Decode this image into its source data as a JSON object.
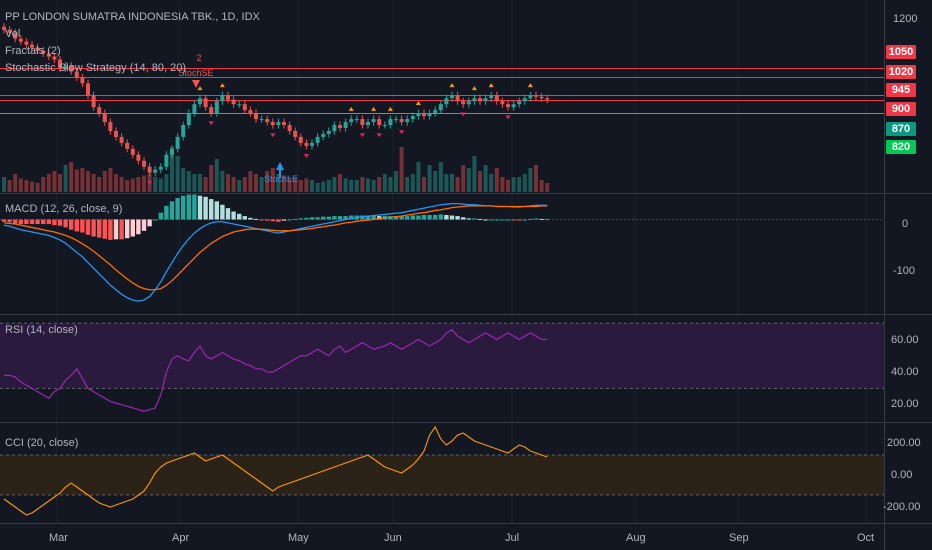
{
  "colors": {
    "background": "#131722",
    "grid": "#1e222d",
    "separator": "#363a45",
    "up": "#26a69a",
    "down": "#ef5350",
    "red_line": "#f23645",
    "green_line": "#4caf50",
    "macd": "#2196f3",
    "signal": "#ff6d00",
    "rsi": "#9c27b0",
    "rsi_band": "#2a1a3e",
    "cci": "#ff9800",
    "cci_band": "#2b2218",
    "tag_green": "#089981",
    "tag_bright_green": "#00c853",
    "tag_red": "#f23645"
  },
  "main_legend": {
    "title": "PP LONDON SUMATRA INDONESIA TBK., 1D, IDX",
    "vol": "Vol",
    "fractals": "Fractals (2)",
    "stochastic": "Stochastic Slow Strategy (14, 80, 20)"
  },
  "macd_legend": "MACD (12, 26, close, 9)",
  "rsi_legend": "RSI (14, close)",
  "cci_legend": "CCI (20, close)",
  "price_axis": {
    "ticks": [
      "1200"
    ],
    "tags": [
      {
        "label": "1050",
        "value": 1050,
        "color": "#f23645"
      },
      {
        "label": "1020",
        "value": 1020,
        "color": "#f23645"
      },
      {
        "label": "945",
        "value": 945,
        "color": "#f23645"
      },
      {
        "label": "900",
        "value": 900,
        "color": "#f23645"
      },
      {
        "label": "870",
        "value": 870,
        "color": "#089981"
      },
      {
        "label": "820",
        "value": 820,
        "color": "#00c853"
      }
    ]
  },
  "macd_axis": {
    "ticks": [
      "0",
      "-100"
    ]
  },
  "rsi_axis": {
    "ticks": [
      "60.00",
      "40.00",
      "20.00"
    ]
  },
  "cci_axis": {
    "ticks": [
      "200.00",
      "0.00",
      "-200.00"
    ]
  },
  "time_axis": {
    "labels": [
      "Mar",
      "Apr",
      "May",
      "Jun",
      "Jul",
      "Aug",
      "Sep",
      "Oct"
    ]
  },
  "annotations": {
    "stoch_se_count": "2",
    "stoch_se_label": "StochSE",
    "stoch_le_label": "StochLE"
  },
  "chart_data": [
    {
      "type": "candlestick",
      "title": "PP LONDON SUMATRA INDONESIA TBK., 1D, IDX",
      "ylim": [
        635,
        1280
      ],
      "horizontal_lines": [
        {
          "value": 1050,
          "color": "#f23645"
        },
        {
          "value": 1020,
          "color": "#f23645"
        },
        {
          "value": 960,
          "color": "#f23645"
        },
        {
          "value": 945,
          "color": "#f23645"
        },
        {
          "value": 900,
          "color": "#4caf50"
        }
      ],
      "closes": [
        1180,
        1170,
        1150,
        1140,
        1130,
        1120,
        1110,
        1100,
        1090,
        1080,
        1050,
        1060,
        1040,
        1020,
        1000,
        960,
        920,
        900,
        870,
        840,
        820,
        800,
        780,
        760,
        740,
        720,
        700,
        710,
        720,
        760,
        780,
        820,
        860,
        900,
        930,
        950,
        920,
        900,
        940,
        960,
        945,
        930,
        930,
        910,
        900,
        880,
        880,
        870,
        860,
        870,
        860,
        840,
        820,
        800,
        790,
        800,
        820,
        830,
        840,
        860,
        850,
        870,
        880,
        880,
        860,
        870,
        880,
        860,
        860,
        880,
        880,
        870,
        880,
        890,
        900,
        890,
        900,
        910,
        930,
        950,
        960,
        940,
        930,
        940,
        950,
        940,
        950,
        960,
        940,
        930,
        920,
        930,
        940,
        950,
        960,
        955,
        950,
        945
      ],
      "volume": [
        10,
        8,
        12,
        9,
        8,
        7,
        6,
        10,
        12,
        14,
        12,
        18,
        20,
        15,
        16,
        14,
        12,
        10,
        14,
        16,
        12,
        10,
        8,
        9,
        10,
        11,
        12,
        10,
        9,
        12,
        30,
        24,
        16,
        14,
        12,
        12,
        10,
        18,
        22,
        14,
        12,
        10,
        8,
        10,
        14,
        12,
        10,
        14,
        16,
        12,
        11,
        10,
        10,
        8,
        9,
        8,
        6,
        7,
        8,
        10,
        12,
        9,
        8,
        8,
        10,
        9,
        8,
        10,
        12,
        10,
        14,
        30,
        10,
        12,
        20,
        10,
        18,
        14,
        20,
        12,
        12,
        10,
        18,
        16,
        24,
        14,
        18,
        12,
        16,
        10,
        8,
        10,
        10,
        12,
        16,
        18,
        8,
        6
      ]
    },
    {
      "type": "line",
      "title": "MACD (12, 26, close, 9)",
      "ylim": [
        -165,
        45
      ],
      "series": [
        {
          "name": "MACD",
          "color": "#2196f3",
          "values": [
            -10,
            -12,
            -15,
            -18,
            -20,
            -22,
            -24,
            -26,
            -28,
            -32,
            -36,
            -42,
            -50,
            -58,
            -66,
            -76,
            -86,
            -96,
            -106,
            -116,
            -124,
            -132,
            -138,
            -142,
            -144,
            -142,
            -136,
            -124,
            -110,
            -92,
            -76,
            -60,
            -46,
            -34,
            -24,
            -16,
            -10,
            -6,
            -4,
            -4,
            -6,
            -8,
            -10,
            -12,
            -14,
            -16,
            -18,
            -20,
            -22,
            -24,
            -22,
            -20,
            -18,
            -16,
            -14,
            -12,
            -10,
            -8,
            -6,
            -4,
            -2,
            0,
            2,
            4,
            5,
            6,
            7,
            8,
            9,
            10,
            11,
            12,
            14,
            16,
            18,
            20,
            22,
            24,
            26,
            27,
            28,
            28,
            27,
            26,
            26,
            25,
            24,
            24,
            23,
            23,
            23,
            22,
            22,
            23,
            24,
            25,
            25,
            25
          ]
        },
        {
          "name": "Signal",
          "color": "#ff6d00",
          "values": [
            -6,
            -7,
            -8,
            -10,
            -12,
            -14,
            -16,
            -18,
            -20,
            -22,
            -25,
            -28,
            -32,
            -37,
            -43,
            -49,
            -56,
            -64,
            -72,
            -80,
            -89,
            -97,
            -105,
            -112,
            -118,
            -122,
            -124,
            -124,
            -122,
            -116,
            -108,
            -98,
            -88,
            -78,
            -68,
            -58,
            -50,
            -42,
            -36,
            -30,
            -26,
            -22,
            -20,
            -18,
            -17,
            -17,
            -17,
            -18,
            -19,
            -20,
            -20,
            -20,
            -19,
            -18,
            -17,
            -16,
            -14,
            -13,
            -11,
            -10,
            -8,
            -6,
            -5,
            -3,
            -2,
            -1,
            0,
            2,
            3,
            4,
            5,
            6,
            8,
            9,
            11,
            12,
            14,
            16,
            17,
            19,
            21,
            22,
            23,
            24,
            24,
            24,
            24,
            24,
            23,
            23,
            23,
            23,
            23,
            23,
            23,
            23,
            24,
            24
          ]
        },
        {
          "name": "Histogram",
          "values": [
            -4,
            -5,
            -7,
            -8,
            -8,
            -8,
            -8,
            -8,
            -8,
            -10,
            -11,
            -14,
            -18,
            -21,
            -23,
            -27,
            -30,
            -32,
            -34,
            -36,
            -35,
            -35,
            -33,
            -30,
            -26,
            -20,
            -12,
            0,
            12,
            24,
            32,
            38,
            42,
            44,
            44,
            42,
            40,
            36,
            32,
            26,
            20,
            14,
            10,
            6,
            3,
            1,
            -1,
            -2,
            -3,
            -4,
            -2,
            0,
            1,
            2,
            3,
            4,
            4,
            5,
            5,
            6,
            6,
            6,
            7,
            7,
            7,
            7,
            7,
            6,
            6,
            6,
            6,
            6,
            6,
            7,
            7,
            8,
            8,
            8,
            9,
            8,
            7,
            6,
            4,
            2,
            2,
            1,
            0,
            0,
            0,
            0,
            0,
            -1,
            -1,
            0,
            1,
            2,
            1,
            1
          ]
        }
      ]
    },
    {
      "type": "line",
      "title": "RSI (14, close)",
      "ylim": [
        10,
        75
      ],
      "bands": [
        30,
        70
      ],
      "series": [
        {
          "name": "RSI",
          "color": "#9c27b0",
          "values": [
            38,
            38,
            37,
            34,
            32,
            30,
            28,
            26,
            24,
            28,
            30,
            35,
            38,
            42,
            36,
            30,
            28,
            26,
            24,
            22,
            21,
            20,
            19,
            18,
            17,
            16,
            17,
            18,
            26,
            40,
            48,
            50,
            48,
            47,
            52,
            56,
            50,
            48,
            50,
            52,
            50,
            48,
            47,
            45,
            44,
            42,
            42,
            40,
            40,
            42,
            44,
            46,
            48,
            50,
            50,
            52,
            54,
            52,
            50,
            54,
            56,
            52,
            54,
            56,
            58,
            56,
            54,
            55,
            56,
            58,
            56,
            54,
            56,
            58,
            60,
            58,
            56,
            58,
            60,
            64,
            66,
            62,
            60,
            58,
            60,
            62,
            64,
            62,
            60,
            62,
            64,
            62,
            60,
            62,
            64,
            62,
            60,
            60
          ]
        }
      ]
    },
    {
      "type": "line",
      "title": "CCI (20, close)",
      "ylim": [
        -240,
        260
      ],
      "bands": [
        -100,
        100
      ],
      "series": [
        {
          "name": "CCI",
          "color": "#ff9800",
          "values": [
            -120,
            -140,
            -160,
            -180,
            -200,
            -190,
            -170,
            -150,
            -130,
            -110,
            -90,
            -60,
            -40,
            -60,
            -80,
            -100,
            -120,
            -140,
            -150,
            -160,
            -150,
            -140,
            -130,
            -120,
            -100,
            -80,
            -40,
            10,
            40,
            60,
            70,
            80,
            90,
            100,
            110,
            90,
            70,
            80,
            90,
            100,
            80,
            60,
            40,
            20,
            0,
            -20,
            -40,
            -60,
            -80,
            -60,
            -50,
            -40,
            -30,
            -20,
            -10,
            0,
            10,
            20,
            30,
            40,
            50,
            60,
            70,
            80,
            90,
            100,
            80,
            60,
            40,
            30,
            20,
            10,
            30,
            50,
            80,
            120,
            200,
            240,
            180,
            150,
            170,
            200,
            210,
            190,
            170,
            160,
            150,
            140,
            130,
            120,
            110,
            130,
            150,
            140,
            120,
            110,
            100,
            90
          ]
        }
      ]
    }
  ]
}
